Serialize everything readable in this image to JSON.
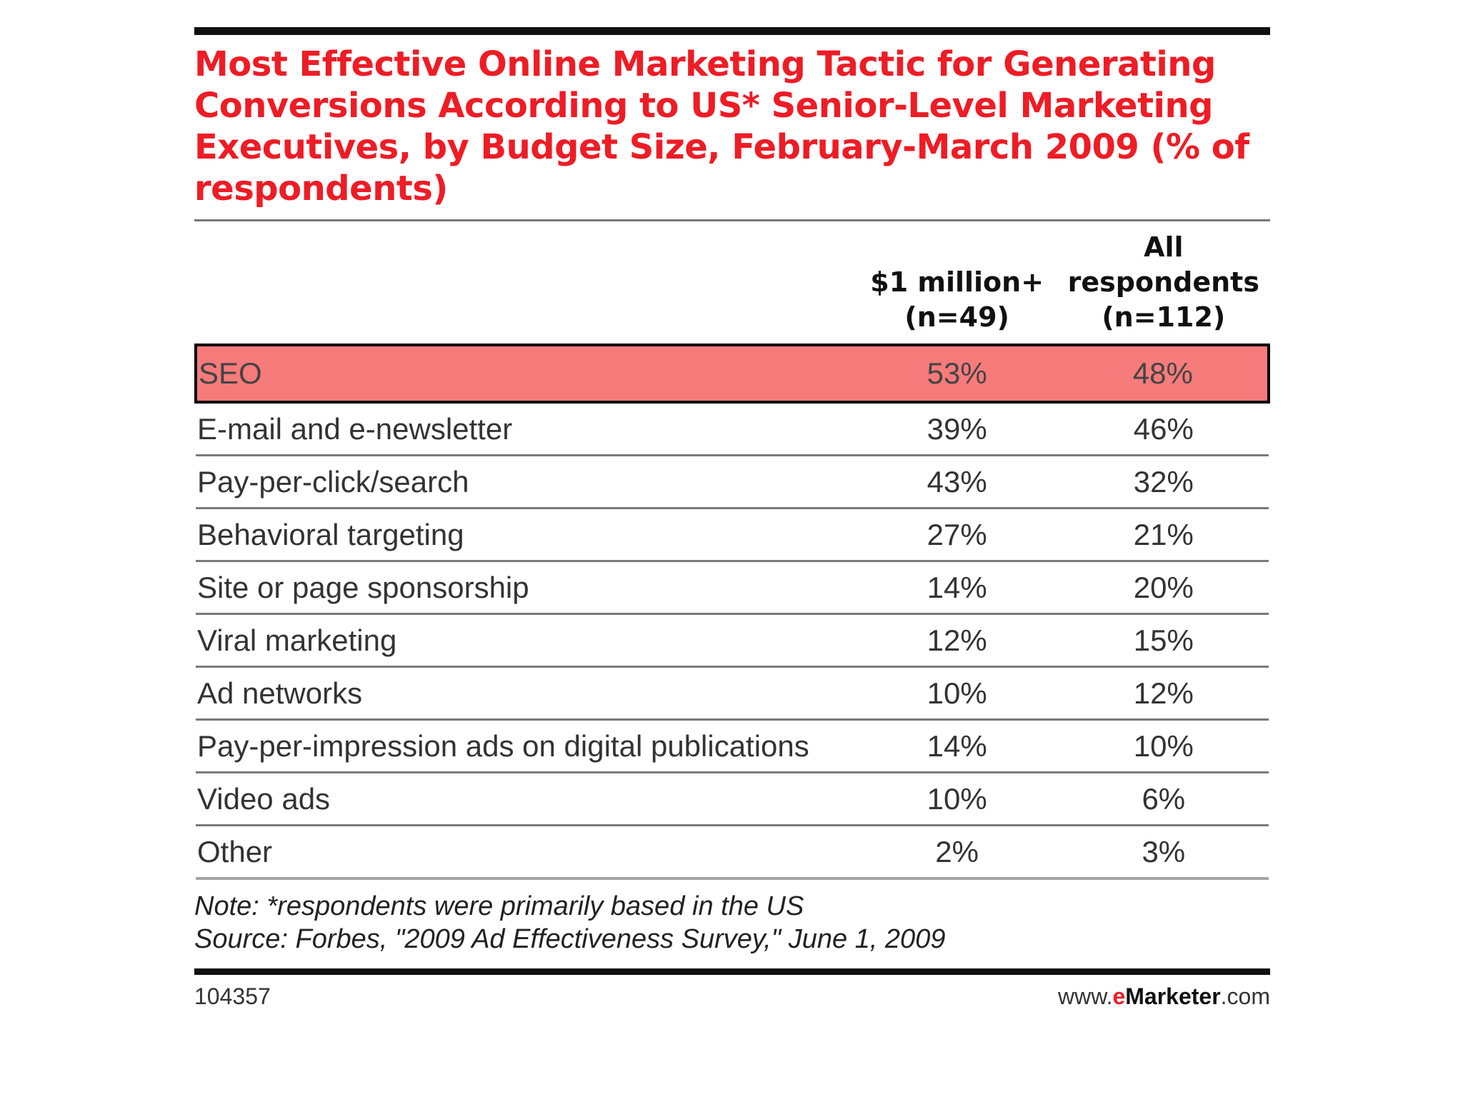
{
  "chart_data": {
    "type": "table",
    "title": "Most Effective Online Marketing Tactic for Generating Conversions According to US* Senior-Level Marketing Executives, by Budget Size, February-March 2009 (% of respondents)",
    "columns": [
      "",
      "$1 million+ (n=49)",
      "All respondents (n=112)"
    ],
    "column_labels": {
      "col1_line1": "$1 million+",
      "col1_line2": "(n=49)",
      "col2_line1": "All",
      "col2_line2": "respondents",
      "col2_line3": "(n=112)"
    },
    "rows": [
      {
        "label": "SEO",
        "million_plus": "53%",
        "all": "48%",
        "highlighted": true
      },
      {
        "label": "E-mail and e-newsletter",
        "million_plus": "39%",
        "all": "46%"
      },
      {
        "label": "Pay-per-click/search",
        "million_plus": "43%",
        "all": "32%"
      },
      {
        "label": "Behavioral targeting",
        "million_plus": "27%",
        "all": "21%"
      },
      {
        "label": "Site or page sponsorship",
        "million_plus": "14%",
        "all": "20%"
      },
      {
        "label": "Viral marketing",
        "million_plus": "12%",
        "all": "15%"
      },
      {
        "label": "Ad networks",
        "million_plus": "10%",
        "all": "12%"
      },
      {
        "label": "Pay-per-impression ads on digital publications",
        "million_plus": "14%",
        "all": "10%"
      },
      {
        "label": "Video ads",
        "million_plus": "10%",
        "all": "6%"
      },
      {
        "label": "Other",
        "million_plus": "2%",
        "all": "3%"
      }
    ],
    "note": "Note: *respondents were primarily based in the US",
    "source": "Source: Forbes, \"2009 Ad Effectiveness Survey,\" June 1, 2009",
    "chart_id": "104357",
    "brand": {
      "prefix": "www.",
      "e": "e",
      "name": "Marketer",
      "suffix": ".com"
    }
  },
  "colors": {
    "title": "#ee1c25",
    "highlight": "#f77b7b"
  }
}
